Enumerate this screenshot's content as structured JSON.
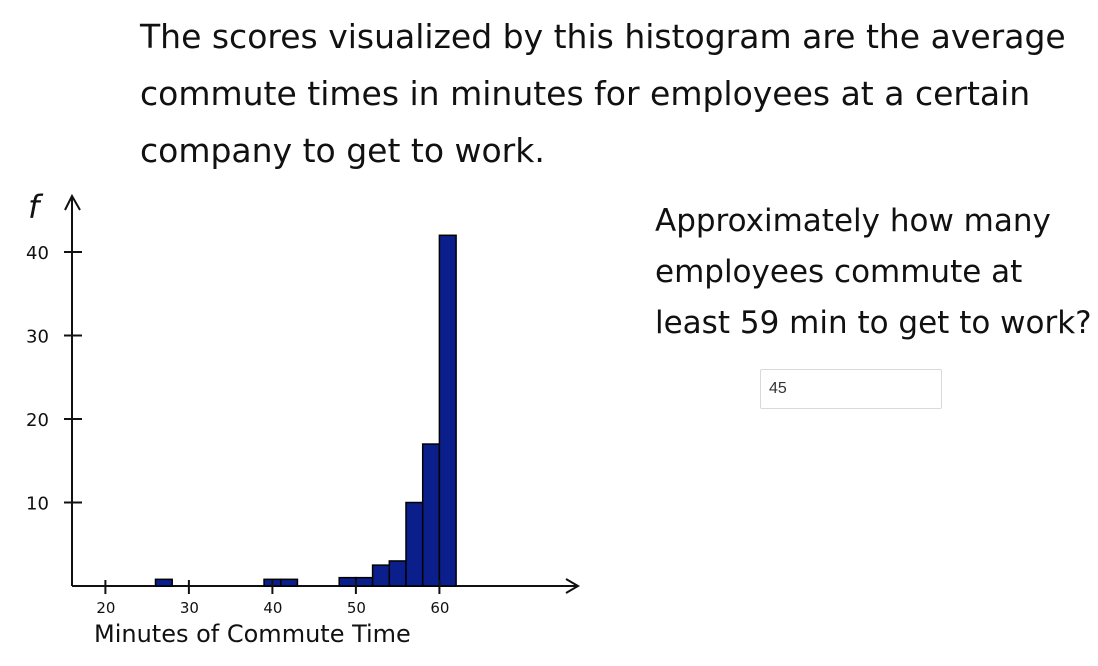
{
  "intro_text": "The scores visualized by this histogram are the average commute times in minutes for employees at a certain company to get to work.",
  "question_text": "Approximately how many employees commute at least 59 min to get to work?",
  "answer_input": {
    "value": "45"
  },
  "colors": {
    "bar_fill": "#0b1f8c",
    "bar_stroke": "#000000",
    "axis": "#111111"
  },
  "chart_data": {
    "type": "bar",
    "title": "",
    "xlabel": "Minutes of Commute Time",
    "ylabel": "f",
    "x_ticks": [
      20,
      30,
      40,
      50,
      60
    ],
    "y_ticks": [
      10,
      20,
      30,
      40
    ],
    "xlim": [
      16,
      72
    ],
    "ylim": [
      0,
      44
    ],
    "bin_width": 2,
    "bins": [
      {
        "start": 26,
        "end": 28,
        "value": 0.8
      },
      {
        "start": 39,
        "end": 41,
        "value": 0.8
      },
      {
        "start": 41,
        "end": 43,
        "value": 0.8
      },
      {
        "start": 48,
        "end": 50,
        "value": 1
      },
      {
        "start": 50,
        "end": 52,
        "value": 1
      },
      {
        "start": 52,
        "end": 54,
        "value": 2.5
      },
      {
        "start": 54,
        "end": 56,
        "value": 3
      },
      {
        "start": 56,
        "end": 58,
        "value": 10
      },
      {
        "start": 58,
        "end": 60,
        "value": 17
      },
      {
        "start": 60,
        "end": 62,
        "value": 42
      }
    ],
    "grid": false,
    "legend": "none"
  }
}
